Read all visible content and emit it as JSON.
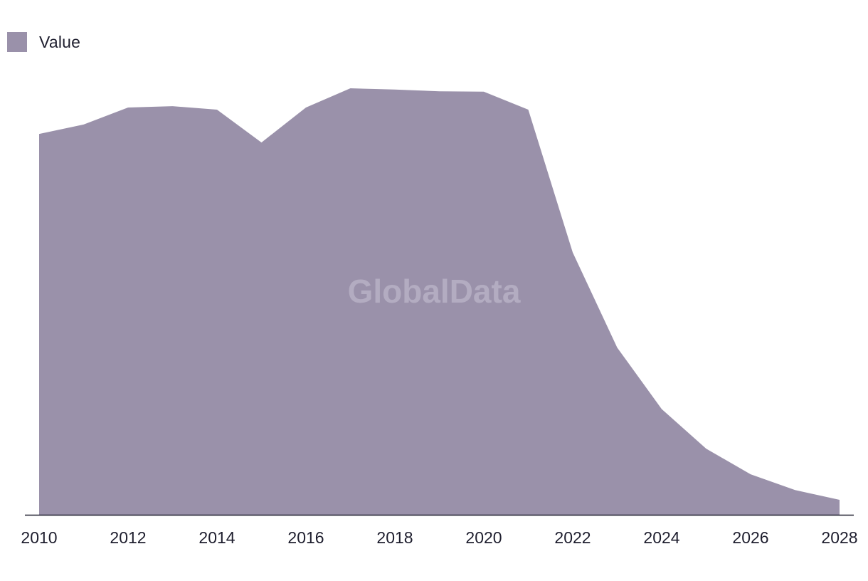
{
  "legend": {
    "label": "Value"
  },
  "watermark": "GlobalData",
  "colors": {
    "area": "#9a91aa",
    "axis": "#1e1e2e",
    "watermark": "#b3acc1"
  },
  "chart_data": {
    "type": "area",
    "title": "",
    "xlabel": "",
    "ylabel": "",
    "legend_position": "top-left",
    "grid": false,
    "x": [
      2010,
      2011,
      2012,
      2013,
      2014,
      2015,
      2016,
      2017,
      2018,
      2019,
      2020,
      2021,
      2022,
      2023,
      2024,
      2025,
      2026,
      2027,
      2028
    ],
    "x_ticks": [
      "2010",
      "2012",
      "2014",
      "2016",
      "2018",
      "2020",
      "2022",
      "2024",
      "2026",
      "2028"
    ],
    "ylim": [
      0,
      100
    ],
    "series": [
      {
        "name": "Value",
        "values": [
          89.3,
          91.5,
          95.5,
          95.8,
          95.0,
          87.3,
          95.5,
          100.0,
          99.7,
          99.3,
          99.2,
          95.0,
          61.5,
          39.2,
          24.8,
          15.5,
          9.5,
          5.8,
          3.5
        ]
      }
    ]
  }
}
